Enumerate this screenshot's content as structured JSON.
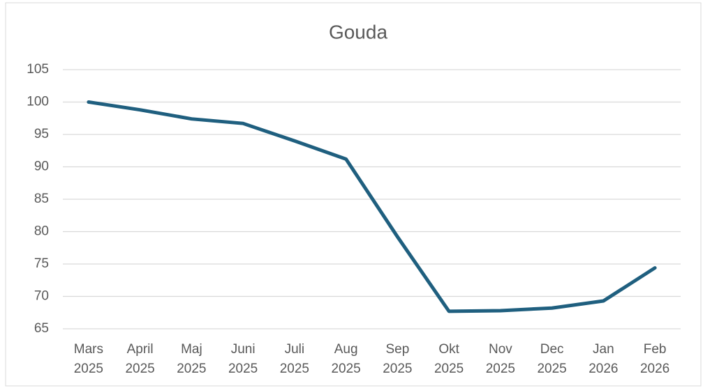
{
  "chart_data": {
    "type": "line",
    "title": "Gouda",
    "categories": [
      "Mars 2025",
      "April 2025",
      "Maj 2025",
      "Juni 2025",
      "Juli 2025",
      "Aug 2025",
      "Sep 2025",
      "Okt 2025",
      "Nov 2025",
      "Dec 2025",
      "Jan 2026",
      "Feb 2026"
    ],
    "series": [
      {
        "name": "Gouda",
        "color": "#1f5f7f",
        "values": [
          100,
          98.8,
          97.4,
          96.7,
          94.0,
          91.2,
          79.2,
          67.7,
          67.8,
          68.2,
          69.3,
          74.4
        ]
      }
    ],
    "ylim": [
      65,
      105
    ],
    "yticks": [
      65,
      70,
      75,
      80,
      85,
      90,
      95,
      100,
      105
    ],
    "grid": true
  }
}
